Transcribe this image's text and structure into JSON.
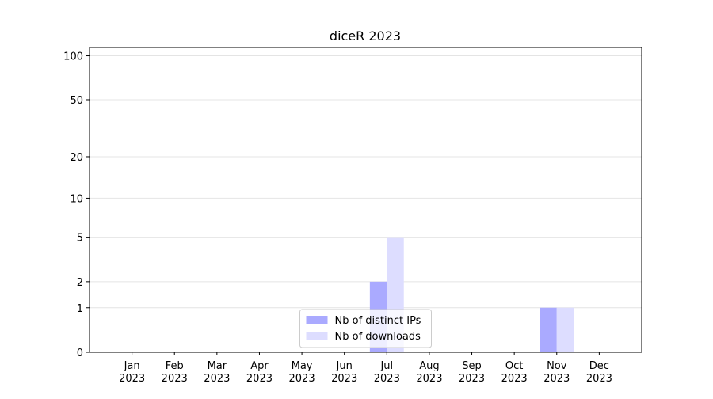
{
  "chart_data": {
    "type": "bar",
    "title": "diceR 2023",
    "categories": [
      "Jan\n2023",
      "Feb\n2023",
      "Mar\n2023",
      "Apr\n2023",
      "May\n2023",
      "Jun\n2023",
      "Jul\n2023",
      "Aug\n2023",
      "Sep\n2023",
      "Oct\n2023",
      "Nov\n2023",
      "Dec\n2023"
    ],
    "series": [
      {
        "name": "Nb of distinct IPs",
        "color": "#aaaaff",
        "values": [
          0,
          0,
          0,
          0,
          0,
          0,
          2,
          0,
          0,
          0,
          1,
          0
        ]
      },
      {
        "name": "Nb of downloads",
        "color": "#ddddff",
        "values": [
          0,
          0,
          0,
          0,
          0,
          0,
          5,
          0,
          0,
          0,
          1,
          0
        ]
      }
    ],
    "yscale": "log1p",
    "ylim": [
      0,
      114
    ],
    "yticks": [
      0,
      1,
      2,
      5,
      10,
      20,
      50,
      100
    ],
    "grid": true,
    "legend": "lower center"
  }
}
